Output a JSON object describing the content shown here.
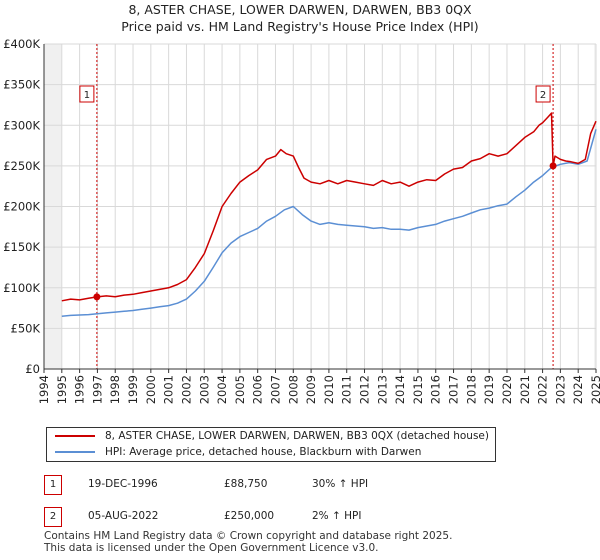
{
  "header": {
    "title": "8, ASTER CHASE, LOWER DARWEN, DARWEN, BB3 0QX",
    "subtitle": "Price paid vs. HM Land Registry's House Price Index (HPI)"
  },
  "colors": {
    "property": "#cc0000",
    "hpi": "#5b8fd4",
    "marker": "#cc0000",
    "shade": "#dde6f3",
    "grid": "#d9d9d9"
  },
  "chart_data": {
    "type": "line",
    "title": "8, ASTER CHASE, LOWER DARWEN, DARWEN, BB3 0QX",
    "subtitle": "Price paid vs. HM Land Registry's House Price Index (HPI)",
    "xlabel": "",
    "ylabel": "",
    "xlim": [
      1994,
      2025
    ],
    "ylim": [
      0,
      400000
    ],
    "y_ticks": [
      {
        "value": 0,
        "label": "£0"
      },
      {
        "value": 50000,
        "label": "£50K"
      },
      {
        "value": 100000,
        "label": "£100K"
      },
      {
        "value": 150000,
        "label": "£150K"
      },
      {
        "value": 200000,
        "label": "£200K"
      },
      {
        "value": 250000,
        "label": "£250K"
      },
      {
        "value": 300000,
        "label": "£300K"
      },
      {
        "value": 350000,
        "label": "£350K"
      },
      {
        "value": 400000,
        "label": "£400K"
      }
    ],
    "x_ticks": [
      "1994",
      "1995",
      "1996",
      "1997",
      "1998",
      "1999",
      "2000",
      "2001",
      "2002",
      "2003",
      "2004",
      "2005",
      "2006",
      "2007",
      "2008",
      "2009",
      "2010",
      "2011",
      "2012",
      "2013",
      "2014",
      "2015",
      "2016",
      "2017",
      "2018",
      "2019",
      "2020",
      "2021",
      "2022",
      "2023",
      "2024",
      "2025"
    ],
    "series": [
      {
        "name": "8, ASTER CHASE, LOWER DARWEN, DARWEN, BB3 0QX (detached house)",
        "x": [
          1995.0,
          1995.5,
          1996.0,
          1996.5,
          1996.97,
          1997.5,
          1998.0,
          1998.5,
          1999.0,
          1999.5,
          2000.0,
          2000.5,
          2001.0,
          2001.5,
          2002.0,
          2002.5,
          2003.0,
          2003.5,
          2004.0,
          2004.5,
          2005.0,
          2005.5,
          2006.0,
          2006.5,
          2007.0,
          2007.3,
          2007.6,
          2008.0,
          2008.3,
          2008.6,
          2009.0,
          2009.5,
          2010.0,
          2010.5,
          2011.0,
          2011.5,
          2012.0,
          2012.5,
          2013.0,
          2013.5,
          2014.0,
          2014.5,
          2015.0,
          2015.5,
          2016.0,
          2016.5,
          2017.0,
          2017.5,
          2018.0,
          2018.5,
          2019.0,
          2019.5,
          2020.0,
          2020.5,
          2021.0,
          2021.5,
          2021.8,
          2022.0,
          2022.3,
          2022.5,
          2022.59,
          2022.7,
          2023.0,
          2023.3,
          2023.6,
          2024.0,
          2024.4,
          2024.7,
          2025.0
        ],
        "values": [
          84000,
          86000,
          85000,
          87000,
          88750,
          90000,
          89000,
          91000,
          92000,
          94000,
          96000,
          98000,
          100000,
          104000,
          110000,
          125000,
          142000,
          170000,
          200000,
          216000,
          230000,
          238000,
          245000,
          258000,
          262000,
          270000,
          265000,
          262000,
          248000,
          235000,
          230000,
          228000,
          232000,
          228000,
          232000,
          230000,
          228000,
          226000,
          232000,
          228000,
          230000,
          225000,
          230000,
          233000,
          232000,
          240000,
          246000,
          248000,
          256000,
          259000,
          265000,
          262000,
          265000,
          275000,
          285000,
          292000,
          300000,
          303000,
          310000,
          315000,
          250000,
          262000,
          258000,
          256000,
          255000,
          253000,
          258000,
          290000,
          305000
        ]
      },
      {
        "name": "HPI: Average price, detached house, Blackburn with Darwen",
        "x": [
          1995.0,
          1995.5,
          1996.0,
          1996.5,
          1997.0,
          1997.5,
          1998.0,
          1998.5,
          1999.0,
          1999.5,
          2000.0,
          2000.5,
          2001.0,
          2001.5,
          2002.0,
          2002.5,
          2003.0,
          2003.5,
          2004.0,
          2004.5,
          2005.0,
          2005.5,
          2006.0,
          2006.5,
          2007.0,
          2007.5,
          2008.0,
          2008.5,
          2009.0,
          2009.5,
          2010.0,
          2010.5,
          2011.0,
          2011.5,
          2012.0,
          2012.5,
          2013.0,
          2013.5,
          2014.0,
          2014.5,
          2015.0,
          2015.5,
          2016.0,
          2016.5,
          2017.0,
          2017.5,
          2018.0,
          2018.5,
          2019.0,
          2019.5,
          2020.0,
          2020.5,
          2021.0,
          2021.5,
          2022.0,
          2022.5,
          2023.0,
          2023.5,
          2024.0,
          2024.5,
          2025.0
        ],
        "values": [
          65000,
          66000,
          66500,
          67000,
          68000,
          69000,
          70000,
          71000,
          72000,
          73500,
          75000,
          76500,
          78000,
          81000,
          86000,
          96000,
          108000,
          125000,
          143000,
          155000,
          163000,
          168000,
          173000,
          182000,
          188000,
          196000,
          200000,
          190000,
          182000,
          178000,
          180000,
          178000,
          177000,
          176000,
          175000,
          173000,
          174000,
          172000,
          172000,
          171000,
          174000,
          176000,
          178000,
          182000,
          185000,
          188000,
          192000,
          196000,
          198000,
          201000,
          203000,
          212000,
          220000,
          230000,
          238000,
          248000,
          252000,
          254000,
          252000,
          256000,
          295000
        ]
      }
    ],
    "annotations": [
      {
        "label": "1",
        "x": 1996.97,
        "value": 88750
      },
      {
        "label": "2",
        "x": 2022.59,
        "value": 250000
      }
    ],
    "legend_position": "bottom"
  },
  "legend": {
    "property_label": "8, ASTER CHASE, LOWER DARWEN, DARWEN, BB3 0QX (detached house)",
    "hpi_label": "HPI: Average price, detached house, Blackburn with Darwen"
  },
  "transactions": [
    {
      "num": "1",
      "date": "19-DEC-1996",
      "price": "£88,750",
      "hpi": "30% ↑ HPI"
    },
    {
      "num": "2",
      "date": "05-AUG-2022",
      "price": "£250,000",
      "hpi": "2% ↑ HPI"
    }
  ],
  "footer": {
    "line1": "Contains HM Land Registry data © Crown copyright and database right 2025.",
    "line2": "This data is licensed under the Open Government Licence v3.0."
  }
}
